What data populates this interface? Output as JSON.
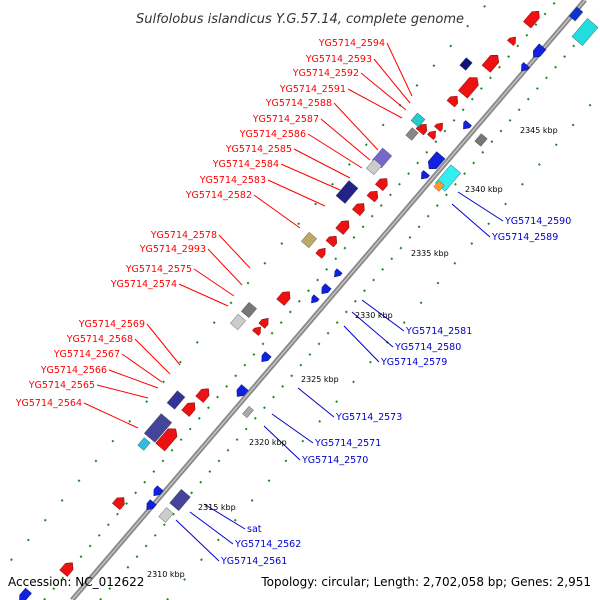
{
  "title": "Sulfolobus islandicus Y.G.57.14, complete genome",
  "footer": {
    "accession": "Accession: NC_012622",
    "topology": "Topology: circular; Length: 2,702,058 bp; Genes: 2,951"
  },
  "colors": {
    "forward_label": "#ff0000",
    "reverse_label": "#0000cc",
    "forward_gene": "#ee1111",
    "reverse_gene": "#1122dd",
    "backbone": "#888888",
    "tick_dot": "#228822"
  },
  "forward_labels": [
    "YG5714_2594",
    "YG5714_2593",
    "YG5714_2592",
    "YG5714_2591",
    "YG5714_2588",
    "YG5714_2587",
    "YG5714_2586",
    "YG5714_2585",
    "YG5714_2584",
    "YG5714_2583",
    "YG5714_2582",
    "YG5714_2578",
    "YG5714_2993",
    "YG5714_2575",
    "YG5714_2574",
    "YG5714_2569",
    "YG5714_2568",
    "YG5714_2567",
    "YG5714_2566",
    "YG5714_2565",
    "YG5714_2564"
  ],
  "reverse_labels": [
    "YG5714_2590",
    "YG5714_2589",
    "YG5714_2581",
    "YG5714_2580",
    "YG5714_2579",
    "YG5714_2573",
    "YG5714_2571",
    "YG5714_2570",
    "sat",
    "YG5714_2562",
    "YG5714_2561"
  ],
  "ticks": [
    "2345 kbp",
    "2340 kbp",
    "2335 kbp",
    "2330 kbp",
    "2325 kbp",
    "2320 kbp",
    "2315 kbp",
    "2310 kbp"
  ]
}
